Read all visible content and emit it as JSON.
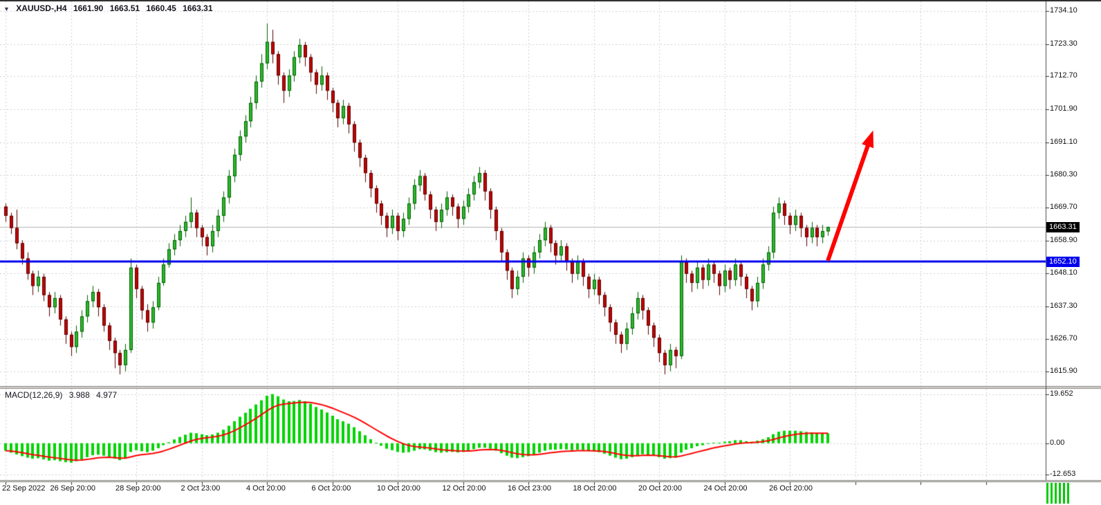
{
  "quote": {
    "symbol_period": "XAUUSD-,H4",
    "open": "1661.90",
    "high": "1663.51",
    "low": "1660.45",
    "close": "1663.31"
  },
  "price_axis": {
    "current_badge": {
      "label": "1663.31",
      "price": 1663.31,
      "bg": "#000000",
      "fg": "#ffffff"
    },
    "level_badge": {
      "label": "1652.10",
      "price": 1652.1,
      "bg": "#0000ee",
      "fg": "#ffffff"
    }
  },
  "colors": {
    "background": "#ffffff",
    "grid": "#cfcfcf",
    "candle_up_fill": "#2db82d",
    "candle_up_edge": "#005f00",
    "candle_down_fill": "#c00000",
    "candle_down_edge": "#5a0000",
    "axis_text": "#101010",
    "divider": "#d4d0c8",
    "window_edge": "#262626"
  },
  "chart_data": [
    {
      "type": "candlestick",
      "title": "XAUUSD-,H4",
      "ylim": [
        1611.4,
        1737.3
      ],
      "y_ticks": [
        {
          "label": "1734.10",
          "value": 1734.1
        },
        {
          "label": "1723.30",
          "value": 1723.3
        },
        {
          "label": "1712.70",
          "value": 1712.7
        },
        {
          "label": "1701.90",
          "value": 1701.9
        },
        {
          "label": "1691.10",
          "value": 1691.1
        },
        {
          "label": "1680.30",
          "value": 1680.3
        },
        {
          "label": "1669.70",
          "value": 1669.7
        },
        {
          "label": "1658.90",
          "value": 1658.9
        },
        {
          "label": "1648.10",
          "value": 1648.1
        },
        {
          "label": "1637.30",
          "value": 1637.3
        },
        {
          "label": "1626.70",
          "value": 1626.7
        },
        {
          "label": "1615.90",
          "value": 1615.9
        }
      ],
      "x_tick_labels": [
        "22 Sep 2022",
        "26 Sep 20:00",
        "28 Sep 20:00",
        "2 Oct 23:00",
        "4 Oct 20:00",
        "6 Oct 20:00",
        "10 Oct 20:00",
        "12 Oct 20:00",
        "16 Oct 23:00",
        "18 Oct 20:00",
        "20 Oct 20:00",
        "24 Oct 20:00",
        "26 Oct 20:00"
      ],
      "x_tick_every": 12,
      "candles": [
        [
          1670,
          1671,
          1665,
          1667
        ],
        [
          1667,
          1668,
          1661,
          1663
        ],
        [
          1663,
          1669,
          1656,
          1658
        ],
        [
          1658,
          1659,
          1651,
          1653
        ],
        [
          1653,
          1655,
          1646,
          1648
        ],
        [
          1648,
          1649,
          1641,
          1644
        ],
        [
          1644,
          1649,
          1642,
          1647
        ],
        [
          1647,
          1648,
          1639,
          1641
        ],
        [
          1641,
          1642,
          1634,
          1637
        ],
        [
          1637,
          1642,
          1635,
          1640
        ],
        [
          1640,
          1641,
          1631,
          1633
        ],
        [
          1633,
          1634,
          1625,
          1628
        ],
        [
          1628,
          1629,
          1621,
          1624
        ],
        [
          1624,
          1631,
          1622,
          1629
        ],
        [
          1629,
          1636,
          1627,
          1634
        ],
        [
          1634,
          1641,
          1632,
          1639
        ],
        [
          1639,
          1644,
          1637,
          1642
        ],
        [
          1642,
          1643,
          1634,
          1637
        ],
        [
          1637,
          1638,
          1629,
          1631
        ],
        [
          1631,
          1632,
          1623,
          1626
        ],
        [
          1626,
          1627,
          1617,
          1622
        ],
        [
          1622,
          1623,
          1615,
          1618
        ],
        [
          1618,
          1625,
          1616,
          1623
        ],
        [
          1623,
          1653,
          1622,
          1650
        ],
        [
          1650,
          1651,
          1640,
          1643
        ],
        [
          1643,
          1644,
          1633,
          1636
        ],
        [
          1636,
          1638,
          1629,
          1632
        ],
        [
          1632,
          1639,
          1630,
          1637
        ],
        [
          1637,
          1647,
          1636,
          1645
        ],
        [
          1645,
          1653,
          1644,
          1651
        ],
        [
          1651,
          1658,
          1650,
          1656
        ],
        [
          1656,
          1661,
          1654,
          1659
        ],
        [
          1659,
          1664,
          1657,
          1662
        ],
        [
          1662,
          1667,
          1660,
          1665
        ],
        [
          1665,
          1673,
          1663,
          1668
        ],
        [
          1668,
          1669,
          1660,
          1663
        ],
        [
          1663,
          1664,
          1657,
          1660
        ],
        [
          1660,
          1661,
          1654,
          1657
        ],
        [
          1657,
          1664,
          1655,
          1662
        ],
        [
          1662,
          1669,
          1660,
          1667
        ],
        [
          1667,
          1675,
          1665,
          1673
        ],
        [
          1673,
          1682,
          1671,
          1680
        ],
        [
          1680,
          1689,
          1678,
          1687
        ],
        [
          1687,
          1695,
          1685,
          1693
        ],
        [
          1693,
          1700,
          1691,
          1698
        ],
        [
          1698,
          1706,
          1696,
          1704
        ],
        [
          1704,
          1713,
          1702,
          1711
        ],
        [
          1711,
          1720,
          1709,
          1717
        ],
        [
          1717,
          1730,
          1715,
          1724
        ],
        [
          1724,
          1728,
          1717,
          1720
        ],
        [
          1720,
          1721,
          1710,
          1713
        ],
        [
          1713,
          1714,
          1704,
          1708
        ],
        [
          1708,
          1715,
          1706,
          1713
        ],
        [
          1713,
          1721,
          1711,
          1719
        ],
        [
          1719,
          1725,
          1717,
          1723
        ],
        [
          1723,
          1724,
          1716,
          1719
        ],
        [
          1719,
          1720,
          1711,
          1714
        ],
        [
          1714,
          1715,
          1707,
          1710
        ],
        [
          1710,
          1716,
          1708,
          1713
        ],
        [
          1713,
          1714,
          1705,
          1708
        ],
        [
          1708,
          1709,
          1701,
          1704
        ],
        [
          1704,
          1705,
          1696,
          1699
        ],
        [
          1699,
          1705,
          1697,
          1703
        ],
        [
          1703,
          1704,
          1694,
          1697
        ],
        [
          1697,
          1698,
          1688,
          1691
        ],
        [
          1691,
          1692,
          1683,
          1686
        ],
        [
          1686,
          1687,
          1678,
          1681
        ],
        [
          1681,
          1682,
          1673,
          1676
        ],
        [
          1676,
          1677,
          1668,
          1671
        ],
        [
          1671,
          1672,
          1664,
          1667
        ],
        [
          1667,
          1668,
          1660,
          1663
        ],
        [
          1663,
          1669,
          1661,
          1667
        ],
        [
          1667,
          1668,
          1659,
          1662
        ],
        [
          1662,
          1668,
          1660,
          1666
        ],
        [
          1666,
          1673,
          1664,
          1671
        ],
        [
          1671,
          1679,
          1669,
          1677
        ],
        [
          1677,
          1682,
          1675,
          1680
        ],
        [
          1680,
          1681,
          1672,
          1674
        ],
        [
          1674,
          1675,
          1666,
          1669
        ],
        [
          1669,
          1670,
          1662,
          1665
        ],
        [
          1665,
          1671,
          1663,
          1669
        ],
        [
          1669,
          1675,
          1667,
          1673
        ],
        [
          1673,
          1674,
          1667,
          1670
        ],
        [
          1670,
          1671,
          1663,
          1666
        ],
        [
          1666,
          1672,
          1664,
          1670
        ],
        [
          1670,
          1676,
          1668,
          1674
        ],
        [
          1674,
          1680,
          1672,
          1678
        ],
        [
          1678,
          1683,
          1676,
          1681
        ],
        [
          1681,
          1682,
          1672,
          1675
        ],
        [
          1675,
          1676,
          1666,
          1669
        ],
        [
          1669,
          1670,
          1659,
          1662
        ],
        [
          1662,
          1663,
          1652,
          1655
        ],
        [
          1655,
          1656,
          1646,
          1649
        ],
        [
          1649,
          1650,
          1640,
          1643
        ],
        [
          1643,
          1649,
          1641,
          1647
        ],
        [
          1647,
          1655,
          1645,
          1653
        ],
        [
          1653,
          1654,
          1647,
          1650
        ],
        [
          1650,
          1657,
          1648,
          1655
        ],
        [
          1655,
          1661,
          1653,
          1659
        ],
        [
          1659,
          1665,
          1657,
          1663
        ],
        [
          1663,
          1664,
          1655,
          1658
        ],
        [
          1658,
          1659,
          1651,
          1654
        ],
        [
          1654,
          1659,
          1652,
          1657
        ],
        [
          1657,
          1658,
          1649,
          1652
        ],
        [
          1652,
          1653,
          1645,
          1648
        ],
        [
          1648,
          1654,
          1646,
          1652
        ],
        [
          1652,
          1653,
          1644,
          1647
        ],
        [
          1647,
          1648,
          1640,
          1643
        ],
        [
          1643,
          1648,
          1641,
          1646
        ],
        [
          1646,
          1647,
          1638,
          1641
        ],
        [
          1641,
          1642,
          1634,
          1637
        ],
        [
          1637,
          1638,
          1629,
          1632
        ],
        [
          1632,
          1633,
          1625,
          1628
        ],
        [
          1628,
          1629,
          1622,
          1625
        ],
        [
          1625,
          1632,
          1623,
          1630
        ],
        [
          1630,
          1637,
          1628,
          1635
        ],
        [
          1635,
          1642,
          1633,
          1640
        ],
        [
          1640,
          1641,
          1633,
          1636
        ],
        [
          1636,
          1637,
          1628,
          1631
        ],
        [
          1631,
          1632,
          1624,
          1627
        ],
        [
          1627,
          1628,
          1619,
          1622
        ],
        [
          1622,
          1623,
          1615,
          1618
        ],
        [
          1618,
          1625,
          1616,
          1623
        ],
        [
          1623,
          1624,
          1617,
          1621
        ],
        [
          1621,
          1654,
          1620,
          1652
        ],
        [
          1652,
          1653,
          1645,
          1648
        ],
        [
          1648,
          1649,
          1642,
          1645
        ],
        [
          1645,
          1652,
          1643,
          1650
        ],
        [
          1650,
          1651,
          1643,
          1646
        ],
        [
          1646,
          1653,
          1644,
          1651
        ],
        [
          1651,
          1652,
          1645,
          1648
        ],
        [
          1648,
          1649,
          1641,
          1644
        ],
        [
          1644,
          1651,
          1642,
          1649
        ],
        [
          1649,
          1650,
          1643,
          1646
        ],
        [
          1646,
          1653,
          1644,
          1651
        ],
        [
          1651,
          1652,
          1644,
          1647
        ],
        [
          1647,
          1648,
          1640,
          1643
        ],
        [
          1643,
          1644,
          1636,
          1639
        ],
        [
          1639,
          1647,
          1637,
          1645
        ],
        [
          1645,
          1653,
          1643,
          1651
        ],
        [
          1651,
          1657,
          1649,
          1655
        ],
        [
          1655,
          1670,
          1653,
          1668
        ],
        [
          1668,
          1673,
          1666,
          1671
        ],
        [
          1671,
          1672,
          1664,
          1667
        ],
        [
          1667,
          1668,
          1661,
          1664
        ],
        [
          1664,
          1669,
          1662,
          1667
        ],
        [
          1667,
          1668,
          1660,
          1663
        ],
        [
          1663,
          1664,
          1657,
          1660
        ],
        [
          1660,
          1665,
          1658,
          1663
        ],
        [
          1663,
          1664,
          1657,
          1660
        ],
        [
          1660,
          1664,
          1658,
          1662
        ],
        [
          1661.9,
          1663.51,
          1660.45,
          1663.31
        ]
      ],
      "levels": [
        {
          "name": "last-price-line",
          "price": 1663.31,
          "color": "#b4b4b4",
          "width": 1
        },
        {
          "name": "horizontal-support-line",
          "price": 1652.1,
          "color": "#0000ee",
          "width": 3
        }
      ],
      "annotations": [
        {
          "type": "arrow",
          "from": {
            "bar": 151,
            "price": 1652.3
          },
          "to": {
            "bar": 159.3,
            "price": 1695
          },
          "color": "#ff0000",
          "width": 6
        }
      ]
    },
    {
      "type": "macd-histogram",
      "label": "MACD(12,26,9)",
      "main_value": "3.988",
      "signal_value": "4.977",
      "ylim": [
        -14.5,
        21.8
      ],
      "y_ticks": [
        {
          "label": "19.652",
          "value": 19.652
        },
        {
          "label": "0.00",
          "value": 0
        },
        {
          "label": "-12.653",
          "value": -12.653
        }
      ],
      "signal_ema_period": 9,
      "hist_color": "#00d400",
      "signal_color": "#ff0000",
      "values": [
        -3.0,
        -3.8,
        -4.5,
        -5.2,
        -5.8,
        -6.2,
        -6.0,
        -6.5,
        -7.0,
        -6.8,
        -7.2,
        -7.6,
        -7.8,
        -7.2,
        -6.5,
        -5.6,
        -4.8,
        -4.6,
        -5.0,
        -5.6,
        -6.2,
        -6.8,
        -6.0,
        -3.5,
        -2.8,
        -3.2,
        -3.6,
        -3.0,
        -2.0,
        -0.8,
        0.4,
        1.5,
        2.5,
        3.4,
        4.2,
        4.0,
        3.6,
        3.2,
        3.5,
        4.2,
        5.4,
        7.0,
        8.8,
        10.6,
        12.2,
        13.8,
        15.5,
        17.2,
        19.0,
        19.652,
        18.8,
        17.5,
        16.8,
        16.9,
        17.3,
        16.8,
        15.8,
        14.5,
        13.5,
        12.3,
        11.0,
        9.6,
        8.8,
        7.8,
        6.4,
        4.8,
        3.2,
        1.6,
        0.2,
        -1.0,
        -2.2,
        -2.8,
        -3.5,
        -3.8,
        -3.6,
        -3.0,
        -2.4,
        -2.5,
        -3.0,
        -3.6,
        -3.8,
        -3.6,
        -3.5,
        -3.7,
        -3.5,
        -3.0,
        -2.4,
        -1.8,
        -1.8,
        -2.2,
        -3.0,
        -4.0,
        -5.0,
        -5.8,
        -6.0,
        -5.6,
        -5.2,
        -4.6,
        -3.8,
        -3.0,
        -2.6,
        -2.6,
        -2.4,
        -2.5,
        -2.8,
        -2.6,
        -2.8,
        -3.2,
        -3.2,
        -3.6,
        -4.2,
        -5.0,
        -5.8,
        -6.4,
        -6.2,
        -5.6,
        -4.8,
        -4.4,
        -4.6,
        -5.0,
        -5.6,
        -6.2,
        -6.0,
        -5.8,
        -3.8,
        -2.6,
        -2.0,
        -1.2,
        -0.8,
        -0.2,
        0.2,
        0.2,
        0.6,
        0.8,
        1.2,
        1.2,
        0.8,
        0.6,
        1.0,
        1.6,
        2.4,
        3.6,
        4.6,
        5.0,
        5.0,
        5.0,
        4.8,
        4.5,
        4.3,
        4.1,
        4.0,
        3.988
      ]
    }
  ]
}
